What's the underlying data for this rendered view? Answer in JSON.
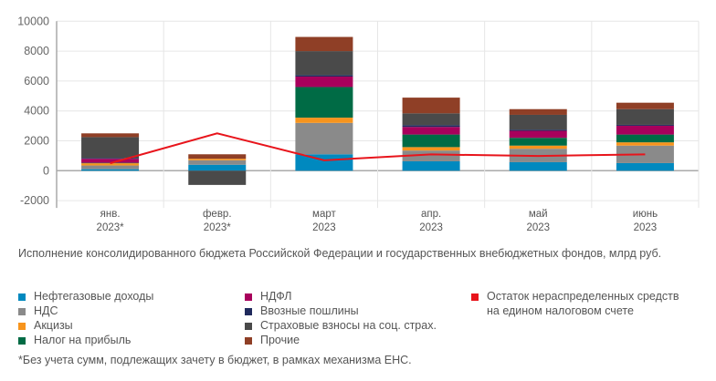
{
  "chart_data": {
    "type": "bar",
    "stacked": true,
    "title": "Исполнение консолидированного бюджета Российской Федерации и государственных внебюджетных фондов, млрд руб.",
    "categories": [
      [
        "янв.",
        "2023*"
      ],
      [
        "февр.",
        "2023*"
      ],
      [
        "март",
        "2023"
      ],
      [
        "апр.",
        "2023"
      ],
      [
        "май",
        "2023"
      ],
      [
        "июнь",
        "2023"
      ]
    ],
    "ylim": [
      -2000,
      10000
    ],
    "yticks": [
      -2000,
      0,
      2000,
      4000,
      6000,
      8000,
      10000
    ],
    "grid": true,
    "legend_position": "bottom",
    "series": [
      {
        "name": "Нефтегазовые доходы",
        "color": "#0089bf",
        "values": [
          100,
          400,
          1100,
          630,
          570,
          510
        ]
      },
      {
        "name": "НДС",
        "color": "#8a8a8a",
        "values": [
          250,
          300,
          2100,
          720,
          900,
          1170
        ]
      },
      {
        "name": "Акцизы",
        "color": "#f7941d",
        "values": [
          150,
          100,
          350,
          230,
          210,
          220
        ]
      },
      {
        "name": "Налог на прибыль",
        "color": "#006b45",
        "values": [
          30,
          0,
          2050,
          840,
          520,
          520
        ]
      },
      {
        "name": "НДФЛ",
        "color": "#a8005c",
        "values": [
          270,
          0,
          700,
          510,
          470,
          590
        ]
      },
      {
        "name": "Ввозные пошлины",
        "color": "#1f2a5c",
        "values": [
          50,
          0,
          100,
          120,
          80,
          60
        ]
      },
      {
        "name": "Страховые взносы на соц. страх.",
        "color": "#4a4a4a",
        "values": [
          1400,
          -950,
          1600,
          790,
          990,
          1050
        ]
      },
      {
        "name": "Прочие",
        "color": "#8f3f26",
        "values": [
          250,
          300,
          950,
          1050,
          380,
          430
        ]
      }
    ],
    "line": {
      "name": "Остаток нераспределенных средств на едином налоговом счете",
      "color": "#e8141b",
      "values": [
        500,
        2500,
        700,
        1090,
        990,
        1090
      ]
    }
  },
  "legend_col3": [
    "Остаток нераспределенных средств",
    "на едином налоговом счете"
  ],
  "footnote": "*Без учета сумм, подлежащих зачету в бюджет, в рамках механизма ЕНС."
}
